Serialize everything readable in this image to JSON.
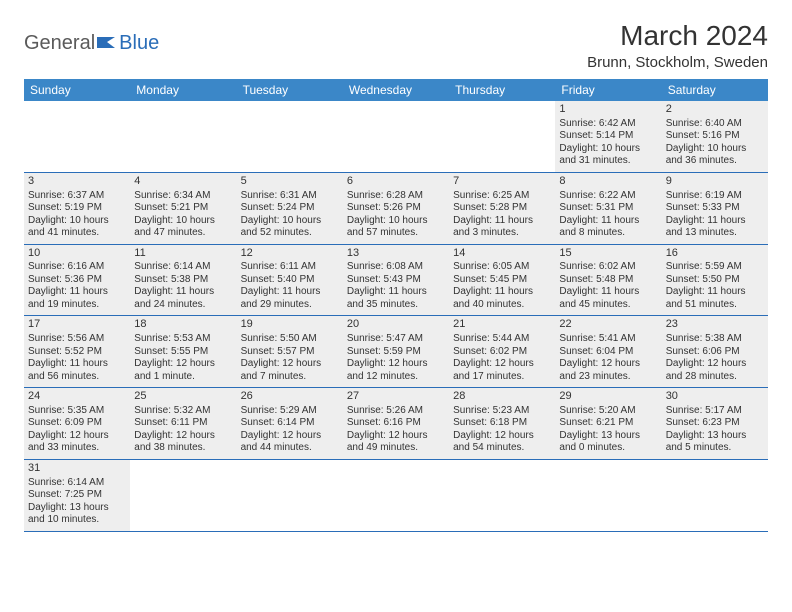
{
  "logo": {
    "part1": "General",
    "part2": "Blue"
  },
  "title": "March 2024",
  "location": "Brunn, Stockholm, Sweden",
  "dayHeaders": [
    "Sunday",
    "Monday",
    "Tuesday",
    "Wednesday",
    "Thursday",
    "Friday",
    "Saturday"
  ],
  "colors": {
    "headerBg": "#3b87c8",
    "headerText": "#ffffff",
    "cellBg": "#eeeeee",
    "border": "#2a6db8",
    "logoGray": "#5a5a5a",
    "logoBlue": "#2a6db8",
    "text": "#333333"
  },
  "weeks": [
    [
      null,
      null,
      null,
      null,
      null,
      {
        "d": "1",
        "sr": "Sunrise: 6:42 AM",
        "ss": "Sunset: 5:14 PM",
        "dl1": "Daylight: 10 hours",
        "dl2": "and 31 minutes."
      },
      {
        "d": "2",
        "sr": "Sunrise: 6:40 AM",
        "ss": "Sunset: 5:16 PM",
        "dl1": "Daylight: 10 hours",
        "dl2": "and 36 minutes."
      }
    ],
    [
      {
        "d": "3",
        "sr": "Sunrise: 6:37 AM",
        "ss": "Sunset: 5:19 PM",
        "dl1": "Daylight: 10 hours",
        "dl2": "and 41 minutes."
      },
      {
        "d": "4",
        "sr": "Sunrise: 6:34 AM",
        "ss": "Sunset: 5:21 PM",
        "dl1": "Daylight: 10 hours",
        "dl2": "and 47 minutes."
      },
      {
        "d": "5",
        "sr": "Sunrise: 6:31 AM",
        "ss": "Sunset: 5:24 PM",
        "dl1": "Daylight: 10 hours",
        "dl2": "and 52 minutes."
      },
      {
        "d": "6",
        "sr": "Sunrise: 6:28 AM",
        "ss": "Sunset: 5:26 PM",
        "dl1": "Daylight: 10 hours",
        "dl2": "and 57 minutes."
      },
      {
        "d": "7",
        "sr": "Sunrise: 6:25 AM",
        "ss": "Sunset: 5:28 PM",
        "dl1": "Daylight: 11 hours",
        "dl2": "and 3 minutes."
      },
      {
        "d": "8",
        "sr": "Sunrise: 6:22 AM",
        "ss": "Sunset: 5:31 PM",
        "dl1": "Daylight: 11 hours",
        "dl2": "and 8 minutes."
      },
      {
        "d": "9",
        "sr": "Sunrise: 6:19 AM",
        "ss": "Sunset: 5:33 PM",
        "dl1": "Daylight: 11 hours",
        "dl2": "and 13 minutes."
      }
    ],
    [
      {
        "d": "10",
        "sr": "Sunrise: 6:16 AM",
        "ss": "Sunset: 5:36 PM",
        "dl1": "Daylight: 11 hours",
        "dl2": "and 19 minutes."
      },
      {
        "d": "11",
        "sr": "Sunrise: 6:14 AM",
        "ss": "Sunset: 5:38 PM",
        "dl1": "Daylight: 11 hours",
        "dl2": "and 24 minutes."
      },
      {
        "d": "12",
        "sr": "Sunrise: 6:11 AM",
        "ss": "Sunset: 5:40 PM",
        "dl1": "Daylight: 11 hours",
        "dl2": "and 29 minutes."
      },
      {
        "d": "13",
        "sr": "Sunrise: 6:08 AM",
        "ss": "Sunset: 5:43 PM",
        "dl1": "Daylight: 11 hours",
        "dl2": "and 35 minutes."
      },
      {
        "d": "14",
        "sr": "Sunrise: 6:05 AM",
        "ss": "Sunset: 5:45 PM",
        "dl1": "Daylight: 11 hours",
        "dl2": "and 40 minutes."
      },
      {
        "d": "15",
        "sr": "Sunrise: 6:02 AM",
        "ss": "Sunset: 5:48 PM",
        "dl1": "Daylight: 11 hours",
        "dl2": "and 45 minutes."
      },
      {
        "d": "16",
        "sr": "Sunrise: 5:59 AM",
        "ss": "Sunset: 5:50 PM",
        "dl1": "Daylight: 11 hours",
        "dl2": "and 51 minutes."
      }
    ],
    [
      {
        "d": "17",
        "sr": "Sunrise: 5:56 AM",
        "ss": "Sunset: 5:52 PM",
        "dl1": "Daylight: 11 hours",
        "dl2": "and 56 minutes."
      },
      {
        "d": "18",
        "sr": "Sunrise: 5:53 AM",
        "ss": "Sunset: 5:55 PM",
        "dl1": "Daylight: 12 hours",
        "dl2": "and 1 minute."
      },
      {
        "d": "19",
        "sr": "Sunrise: 5:50 AM",
        "ss": "Sunset: 5:57 PM",
        "dl1": "Daylight: 12 hours",
        "dl2": "and 7 minutes."
      },
      {
        "d": "20",
        "sr": "Sunrise: 5:47 AM",
        "ss": "Sunset: 5:59 PM",
        "dl1": "Daylight: 12 hours",
        "dl2": "and 12 minutes."
      },
      {
        "d": "21",
        "sr": "Sunrise: 5:44 AM",
        "ss": "Sunset: 6:02 PM",
        "dl1": "Daylight: 12 hours",
        "dl2": "and 17 minutes."
      },
      {
        "d": "22",
        "sr": "Sunrise: 5:41 AM",
        "ss": "Sunset: 6:04 PM",
        "dl1": "Daylight: 12 hours",
        "dl2": "and 23 minutes."
      },
      {
        "d": "23",
        "sr": "Sunrise: 5:38 AM",
        "ss": "Sunset: 6:06 PM",
        "dl1": "Daylight: 12 hours",
        "dl2": "and 28 minutes."
      }
    ],
    [
      {
        "d": "24",
        "sr": "Sunrise: 5:35 AM",
        "ss": "Sunset: 6:09 PM",
        "dl1": "Daylight: 12 hours",
        "dl2": "and 33 minutes."
      },
      {
        "d": "25",
        "sr": "Sunrise: 5:32 AM",
        "ss": "Sunset: 6:11 PM",
        "dl1": "Daylight: 12 hours",
        "dl2": "and 38 minutes."
      },
      {
        "d": "26",
        "sr": "Sunrise: 5:29 AM",
        "ss": "Sunset: 6:14 PM",
        "dl1": "Daylight: 12 hours",
        "dl2": "and 44 minutes."
      },
      {
        "d": "27",
        "sr": "Sunrise: 5:26 AM",
        "ss": "Sunset: 6:16 PM",
        "dl1": "Daylight: 12 hours",
        "dl2": "and 49 minutes."
      },
      {
        "d": "28",
        "sr": "Sunrise: 5:23 AM",
        "ss": "Sunset: 6:18 PM",
        "dl1": "Daylight: 12 hours",
        "dl2": "and 54 minutes."
      },
      {
        "d": "29",
        "sr": "Sunrise: 5:20 AM",
        "ss": "Sunset: 6:21 PM",
        "dl1": "Daylight: 13 hours",
        "dl2": "and 0 minutes."
      },
      {
        "d": "30",
        "sr": "Sunrise: 5:17 AM",
        "ss": "Sunset: 6:23 PM",
        "dl1": "Daylight: 13 hours",
        "dl2": "and 5 minutes."
      }
    ],
    [
      {
        "d": "31",
        "sr": "Sunrise: 6:14 AM",
        "ss": "Sunset: 7:25 PM",
        "dl1": "Daylight: 13 hours",
        "dl2": "and 10 minutes."
      },
      null,
      null,
      null,
      null,
      null,
      null
    ]
  ]
}
